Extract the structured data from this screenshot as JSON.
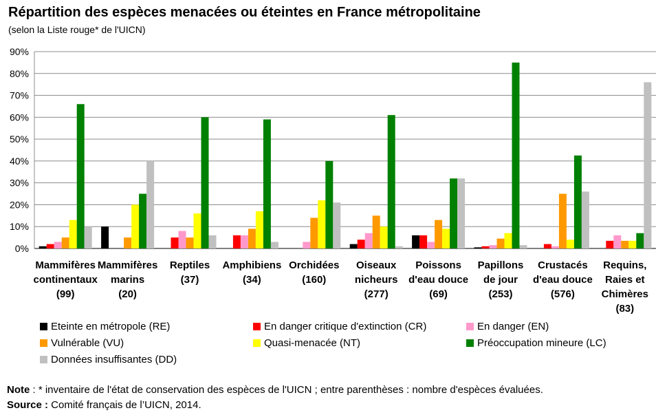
{
  "title": "Répartition des espèces menacées ou éteintes en France métropolitaine",
  "subtitle": "(selon la Liste rouge* de l'UICN)",
  "note_label": "Note",
  "note_text": " : * inventaire de l'état de conservation des espèces de l'UICN ; entre parenthèses : nombre d'espèces évaluées.",
  "source_label": "Source :",
  "source_text": " Comité français de l’UICN, 2014.",
  "chart_data": {
    "type": "bar",
    "ylim": [
      0,
      90
    ],
    "yticks": [
      "0%",
      "10%",
      "20%",
      "30%",
      "40%",
      "50%",
      "60%",
      "70%",
      "80%",
      "90%"
    ],
    "grid": true,
    "legend_position": "bottom",
    "categories": [
      [
        "Mammifères",
        "continentaux",
        "(99)"
      ],
      [
        "Mammifères",
        "marins",
        "(20)"
      ],
      [
        "Reptiles",
        "(37)"
      ],
      [
        "Amphibiens",
        "(34)"
      ],
      [
        "Orchidées",
        "(160)"
      ],
      [
        "Oiseaux",
        "nicheurs",
        "(277)"
      ],
      [
        "Poissons",
        "d'eau douce",
        "(69)"
      ],
      [
        "Papillons",
        "de jour",
        "(253)"
      ],
      [
        "Crustacés",
        "d'eau douce",
        "(576)"
      ],
      [
        "Requins,",
        "Raies et",
        "Chimères",
        "(83)"
      ]
    ],
    "series": [
      {
        "name": "Eteinte en métropole (RE)",
        "color": "#000000",
        "values": [
          1,
          10,
          0,
          0,
          0,
          2,
          6,
          0.5,
          0,
          0
        ]
      },
      {
        "name": "En danger critique d'extinction (CR)",
        "color": "#ff0000",
        "values": [
          2,
          0,
          5,
          6,
          0,
          4,
          6,
          1,
          2,
          3.5
        ]
      },
      {
        "name": "En danger (EN)",
        "color": "#ff99cc",
        "values": [
          3,
          0,
          8,
          6,
          3,
          7,
          3,
          1.5,
          1,
          6
        ]
      },
      {
        "name": "Vulnérable (VU)",
        "color": "#ff9900",
        "values": [
          5,
          5,
          5,
          9,
          14,
          15,
          13,
          4.5,
          25,
          3.5
        ]
      },
      {
        "name": "Quasi-menacée (NT)",
        "color": "#ffff00",
        "values": [
          13,
          20,
          16,
          17,
          22,
          10,
          9,
          7,
          4,
          3.5
        ]
      },
      {
        "name": "Préoccupation mineure (LC)",
        "color": "#008000",
        "values": [
          66,
          25,
          60,
          59,
          40,
          61,
          32,
          85,
          42.5,
          7
        ]
      },
      {
        "name": "Données insuffisantes (DD)",
        "color": "#c0c0c0",
        "values": [
          10,
          40,
          6,
          3,
          21,
          1,
          32,
          1.5,
          26,
          76
        ]
      }
    ]
  }
}
